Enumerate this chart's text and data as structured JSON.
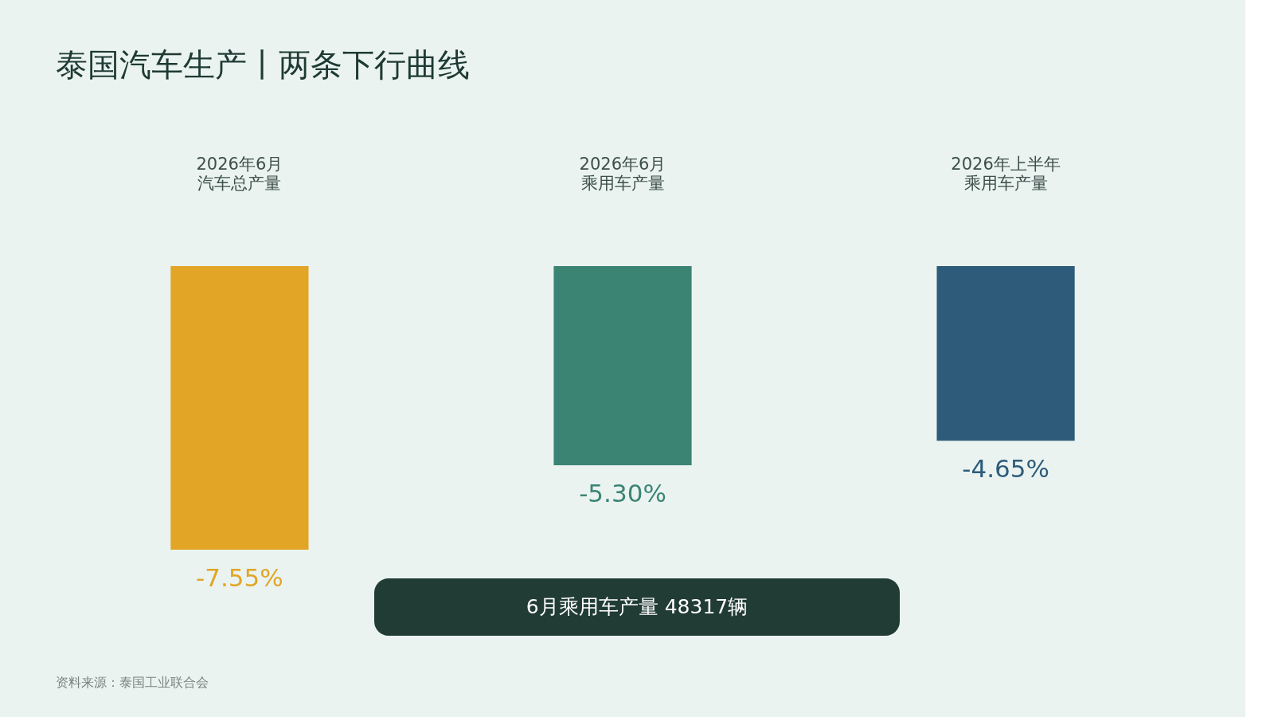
{
  "chart_data": {
    "type": "bar",
    "title": "泰国汽车生产丨两条下行曲线",
    "categories": [
      "2026年6月汽车总产量",
      "2026年6月乘用车产量",
      "2026年上半年乘用车产量"
    ],
    "values": [
      -7.55,
      -5.3,
      -4.65
    ],
    "value_labels": [
      "-7.55%",
      "-5.30%",
      "-4.65%"
    ],
    "colors": [
      "#e2a526",
      "#3b8474",
      "#2e5b7a"
    ],
    "annotations": [
      "6月乘用车产量 48317辆",
      "资料来源：泰国工业联合会"
    ],
    "grid": false
  }
}
